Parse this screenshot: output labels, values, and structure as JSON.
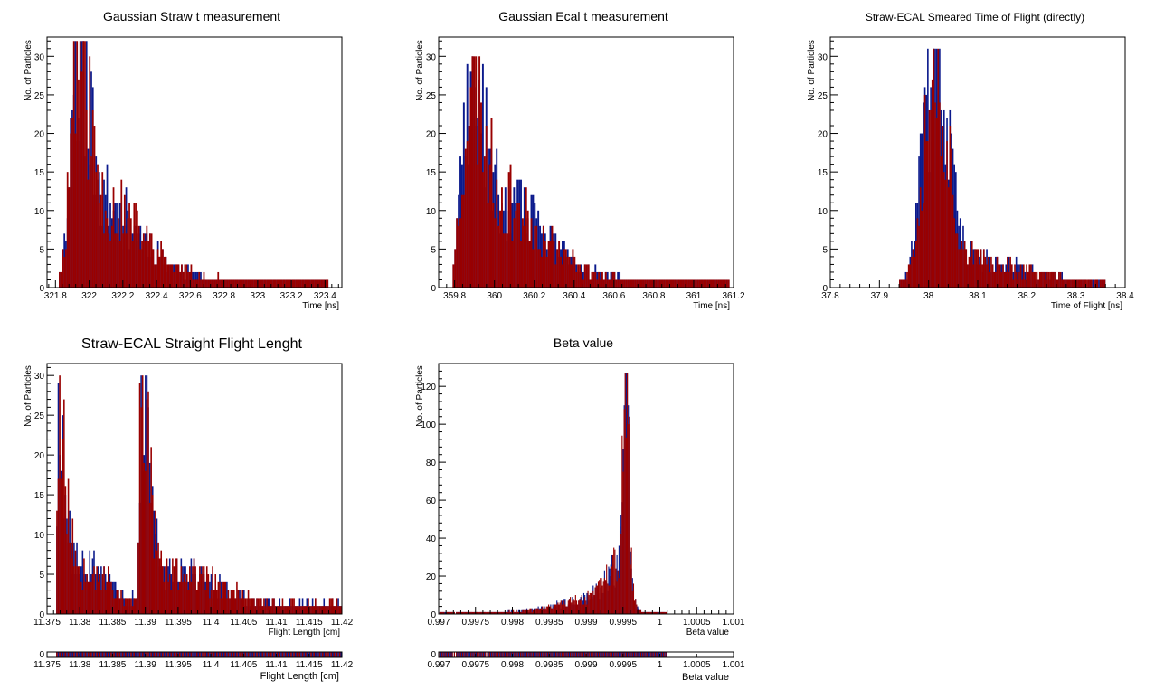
{
  "colors": {
    "blue": "#0b1a8c",
    "red": "#990000",
    "frame": "#000000",
    "background": "#ffffff"
  },
  "ylabel": "No. of Particles",
  "chart_data": [
    {
      "type": "bar",
      "title": "Gaussian Straw t measurement",
      "xlabel": "Time [ns]",
      "ylabel": "No. of Particles",
      "xlim": [
        321.75,
        323.5
      ],
      "ylim": [
        0,
        32.5
      ],
      "xticks": [
        321.8,
        322,
        322.2,
        322.4,
        322.6,
        322.8,
        323,
        323.2,
        323.4
      ],
      "xtick_labels": [
        "321.8",
        "322",
        "322.2",
        "322.4",
        "322.6",
        "322.8",
        "323",
        "323.2",
        "323.4"
      ],
      "yticks": [
        0,
        5,
        10,
        15,
        20,
        25,
        30
      ],
      "ytick_labels": [
        "0",
        "5",
        "10",
        "15",
        "20",
        "25",
        "30"
      ],
      "profile": {
        "start": 321.82,
        "end": 323.42,
        "bins": 170,
        "peaks": [
          {
            "center": 321.93,
            "height": 28,
            "width_left": 0.04,
            "width_right": 0.06
          },
          {
            "center": 322.05,
            "height": 10,
            "width_left": 0.08,
            "width_right": 0.25
          }
        ],
        "floor": 1.0,
        "max_value": 32,
        "seed": 11
      },
      "grid": false,
      "legend": "none"
    },
    {
      "type": "bar",
      "title": "Gaussian Ecal t measurement",
      "xlabel": "Time [ns]",
      "ylabel": "No. of Particles",
      "xlim": [
        359.72,
        361.2
      ],
      "ylim": [
        0,
        32.5
      ],
      "xticks": [
        359.8,
        360,
        360.2,
        360.4,
        360.6,
        360.8,
        361,
        361.2
      ],
      "xtick_labels": [
        "359.8",
        "360",
        "360.2",
        "360.4",
        "360.6",
        "360.8",
        "361",
        "361.2"
      ],
      "yticks": [
        0,
        5,
        10,
        15,
        20,
        25,
        30
      ],
      "ytick_labels": [
        "0",
        "5",
        "10",
        "15",
        "20",
        "25",
        "30"
      ],
      "profile": {
        "start": 359.79,
        "end": 361.18,
        "bins": 160,
        "peaks": [
          {
            "center": 359.88,
            "height": 25,
            "width_left": 0.04,
            "width_right": 0.06
          },
          {
            "center": 360.02,
            "height": 10,
            "width_left": 0.08,
            "width_right": 0.22
          }
        ],
        "floor": 1.0,
        "max_value": 30,
        "seed": 23
      },
      "grid": false,
      "legend": "none"
    },
    {
      "type": "bar",
      "title": "Straw-ECAL Smeared Time of Flight (directly)",
      "xlabel": "Time of Flight [ns]",
      "ylabel": "No. of Particles",
      "xlim": [
        37.8,
        38.4
      ],
      "ylim": [
        0,
        32.5
      ],
      "xticks": [
        37.8,
        37.9,
        38,
        38.1,
        38.2,
        38.3,
        38.4
      ],
      "xtick_labels": [
        "37.8",
        "37.9",
        "38",
        "38.1",
        "38.2",
        "38.3",
        "38.4"
      ],
      "yticks": [
        0,
        5,
        10,
        15,
        20,
        25,
        30
      ],
      "ytick_labels": [
        "0",
        "5",
        "10",
        "15",
        "20",
        "25",
        "30"
      ],
      "profile": {
        "start": 37.94,
        "end": 38.36,
        "bins": 140,
        "peaks": [
          {
            "center": 38.01,
            "height": 27,
            "width_left": 0.022,
            "width_right": 0.028
          },
          {
            "center": 38.07,
            "height": 3,
            "width_left": 0.05,
            "width_right": 0.12
          }
        ],
        "floor": 0.5,
        "max_value": 31,
        "seed": 37
      },
      "grid": false,
      "legend": "none"
    },
    {
      "type": "bar",
      "title": "Straw-ECAL Straight Flight Lenght",
      "xlabel": "Flight Length [cm]",
      "ylabel": "No. of Particles",
      "xlim": [
        11.375,
        11.42
      ],
      "ylim": [
        0,
        31.5
      ],
      "xticks": [
        11.375,
        11.38,
        11.385,
        11.39,
        11.395,
        11.4,
        11.405,
        11.41,
        11.415,
        11.42
      ],
      "xtick_labels": [
        "11.375",
        "11.38",
        "11.385",
        "11.39",
        "11.395",
        "11.4",
        "11.405",
        "11.41",
        "11.415",
        "11.42"
      ],
      "yticks": [
        0,
        5,
        10,
        15,
        20,
        25,
        30
      ],
      "ytick_labels": [
        "0",
        "5",
        "10",
        "15",
        "20",
        "25",
        "30"
      ],
      "profile": {
        "start": 11.3764,
        "end": 11.42,
        "bins": 200,
        "peaks": [
          {
            "center": 11.3767,
            "height": 24,
            "width_left": 0.0002,
            "width_right": 0.0012
          },
          {
            "center": 11.3893,
            "height": 26,
            "width_left": 0.0002,
            "width_right": 0.0014
          },
          {
            "center": 11.381,
            "height": 5,
            "width_left": 0.002,
            "width_right": 0.003
          },
          {
            "center": 11.395,
            "height": 4,
            "width_left": 0.003,
            "width_right": 0.006
          }
        ],
        "floor": 1.2,
        "max_value": 30,
        "seed": 53
      },
      "ratio": {
        "xlabel": "Flight Length [cm]",
        "ytick_labels": [
          "0"
        ]
      },
      "grid": false,
      "legend": "none"
    },
    {
      "type": "bar",
      "title": "Beta value",
      "xlabel": "Beta value",
      "ylabel": "No. of Particles",
      "xlim": [
        0.997,
        1.001
      ],
      "ylim": [
        0,
        132
      ],
      "xticks": [
        0.997,
        0.9975,
        0.998,
        0.9985,
        0.999,
        0.9995,
        1,
        1.0005,
        1.001
      ],
      "xtick_labels": [
        "0.997",
        "0.9975",
        "0.998",
        "0.9985",
        "0.999",
        "0.9995",
        "1",
        "1.0005",
        "1.001"
      ],
      "yticks": [
        0,
        20,
        40,
        60,
        80,
        100,
        120
      ],
      "ytick_labels": [
        "0",
        "20",
        "40",
        "60",
        "80",
        "100",
        "120"
      ],
      "profile": {
        "start": 0.99701,
        "end": 1.0001,
        "bins": 220,
        "peaks": [
          {
            "center": 0.99955,
            "height": 115,
            "width_left": 4e-05,
            "width_right": 3e-05
          },
          {
            "center": 0.99952,
            "height": 30,
            "width_left": 0.00018,
            "width_right": 8e-05
          },
          {
            "center": 0.9992,
            "height": 8,
            "width_left": 0.0005,
            "width_right": 0.0001
          }
        ],
        "floor": 0.8,
        "max_value": 127,
        "seed": 71
      },
      "ratio": {
        "xlabel": "Beta value",
        "ytick_labels": [
          "0"
        ]
      },
      "grid": false,
      "legend": "none"
    }
  ]
}
